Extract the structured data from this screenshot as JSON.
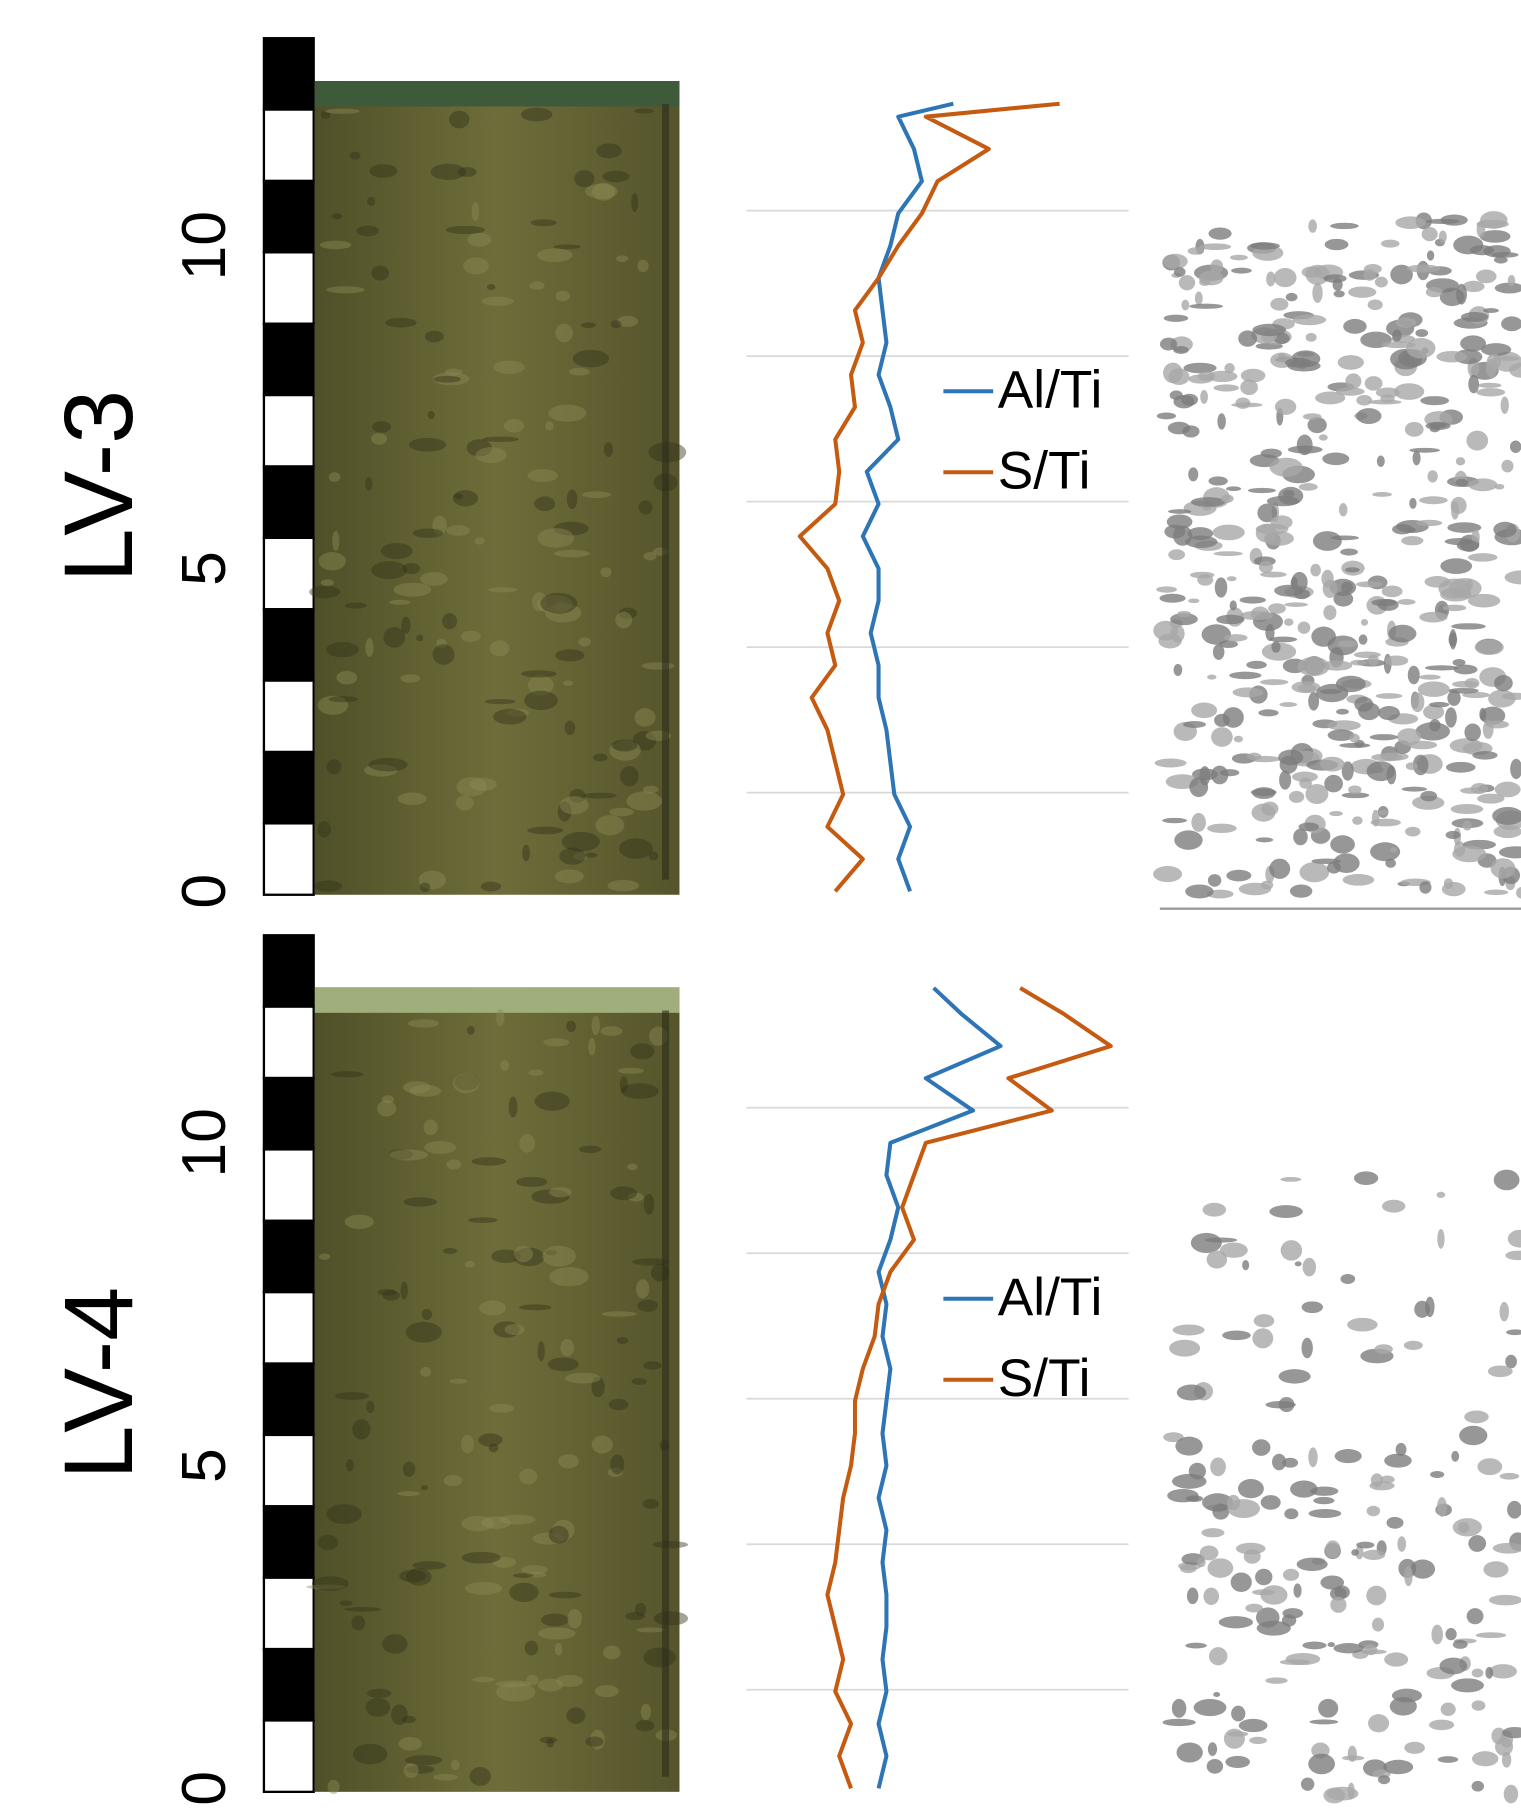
{
  "chart_data": [
    {
      "type": "line",
      "orientation": "vertical",
      "title": "LV-3",
      "x": [
        0,
        0.5,
        1,
        1.5,
        2,
        2.5,
        3,
        3.5,
        4,
        4.5,
        5,
        5.5,
        6,
        6.5,
        7,
        7.5,
        8,
        8.5,
        9,
        9.5,
        10,
        10.5,
        11,
        11.5,
        12,
        12.2
      ],
      "xlim": [
        0,
        13
      ],
      "xticks": [
        0,
        5,
        10
      ],
      "ylim": [
        0,
        100
      ],
      "series": [
        {
          "name": "Al/Ti",
          "color": "#2e75b6",
          "values": [
            43,
            40,
            43,
            39,
            38,
            37,
            35,
            35,
            33,
            35,
            35,
            31,
            35,
            32,
            40,
            38,
            35,
            37,
            36,
            35,
            38,
            40,
            46,
            44,
            40,
            54
          ]
        },
        {
          "name": "S/Ti",
          "color": "#c55a11",
          "values": [
            24,
            31,
            22,
            26,
            24,
            22,
            18,
            24,
            22,
            25,
            22,
            15,
            24,
            25,
            24,
            29,
            28,
            31,
            29,
            35,
            40,
            46,
            50,
            63,
            47,
            81
          ]
        }
      ]
    },
    {
      "type": "line",
      "orientation": "vertical",
      "title": "LV-4",
      "x": [
        0,
        0.5,
        1,
        1.5,
        2,
        2.5,
        3,
        3.5,
        4,
        4.5,
        5,
        5.5,
        6,
        6.5,
        7,
        7.5,
        8,
        8.5,
        9,
        9.5,
        10,
        10.5,
        11,
        11.5,
        12,
        12.4
      ],
      "xlim": [
        0,
        13
      ],
      "xticks": [
        0,
        5,
        10
      ],
      "ylim": [
        0,
        100
      ],
      "series": [
        {
          "name": "Al/Ti",
          "color": "#2e75b6",
          "values": [
            35,
            37,
            35,
            37,
            36,
            37,
            37,
            36,
            37,
            35,
            37,
            36,
            37,
            38,
            36,
            37,
            35,
            38,
            40,
            37,
            38,
            59,
            47,
            66,
            56,
            49
          ]
        },
        {
          "name": "S/Ti",
          "color": "#c55a11",
          "values": [
            28,
            25,
            28,
            24,
            26,
            24,
            22,
            24,
            25,
            26,
            28,
            29,
            29,
            31,
            34,
            35,
            38,
            44,
            41,
            44,
            47,
            79,
            68,
            94,
            82,
            71
          ]
        }
      ]
    }
  ]
}
